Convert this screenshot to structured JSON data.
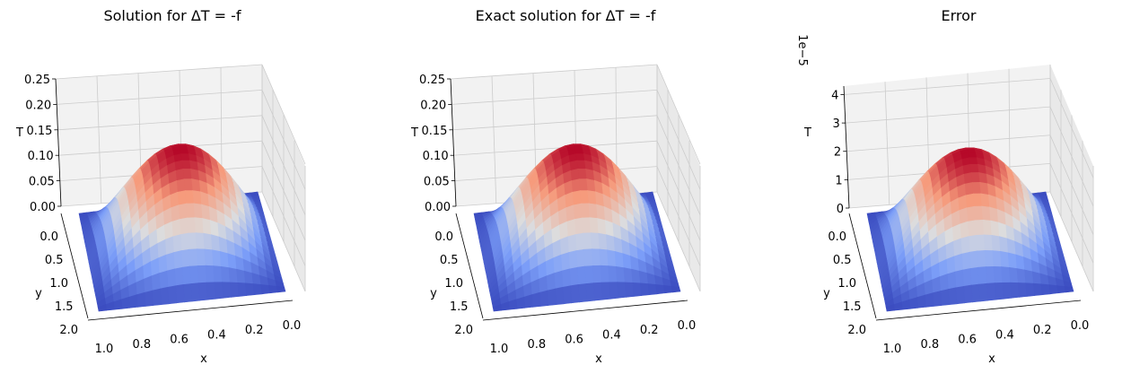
{
  "chart_data": [
    {
      "type": "surface3d",
      "title": "Solution for ΔT = -f",
      "xlabel": "x",
      "ylabel": "y",
      "zlabel": "T",
      "offset_text": "",
      "x_ticks": [
        "1.0",
        "0.8",
        "0.6",
        "0.4",
        "0.2",
        "0.0"
      ],
      "y_ticks": [
        "0.0",
        "0.5",
        "1.0",
        "1.5",
        "2.0"
      ],
      "z_ticks": [
        "0.00",
        "0.05",
        "0.10",
        "0.15",
        "0.20",
        "0.25"
      ],
      "xlim": [
        0,
        1
      ],
      "ylim": [
        0,
        2
      ],
      "zlim": [
        0,
        0.25
      ],
      "peak": 0.2026,
      "peak_location": [
        0.5,
        1.0
      ],
      "colormap": "coolwarm"
    },
    {
      "type": "surface3d",
      "title": "Exact solution for ΔT = -f",
      "xlabel": "x",
      "ylabel": "y",
      "zlabel": "T",
      "offset_text": "",
      "x_ticks": [
        "1.0",
        "0.8",
        "0.6",
        "0.4",
        "0.2",
        "0.0"
      ],
      "y_ticks": [
        "0.0",
        "0.5",
        "1.0",
        "1.5",
        "2.0"
      ],
      "z_ticks": [
        "0.00",
        "0.05",
        "0.10",
        "0.15",
        "0.20",
        "0.25"
      ],
      "xlim": [
        0,
        1
      ],
      "ylim": [
        0,
        2
      ],
      "zlim": [
        0,
        0.25
      ],
      "peak": 0.2026,
      "peak_location": [
        0.5,
        1.0
      ],
      "colormap": "coolwarm"
    },
    {
      "type": "surface3d",
      "title": "Error",
      "xlabel": "x",
      "ylabel": "y",
      "zlabel": "T",
      "offset_text": "1e−5",
      "x_ticks": [
        "1.0",
        "0.8",
        "0.6",
        "0.4",
        "0.2",
        "0.0"
      ],
      "y_ticks": [
        "0.0",
        "0.5",
        "1.0",
        "1.5",
        "2.0"
      ],
      "z_ticks": [
        "0",
        "1",
        "2",
        "3",
        "4"
      ],
      "xlim": [
        0,
        1
      ],
      "ylim": [
        0,
        2
      ],
      "zlim": [
        0,
        4.3
      ],
      "peak": 3.5,
      "peak_location": [
        0.5,
        1.0
      ],
      "colormap": "coolwarm"
    }
  ]
}
